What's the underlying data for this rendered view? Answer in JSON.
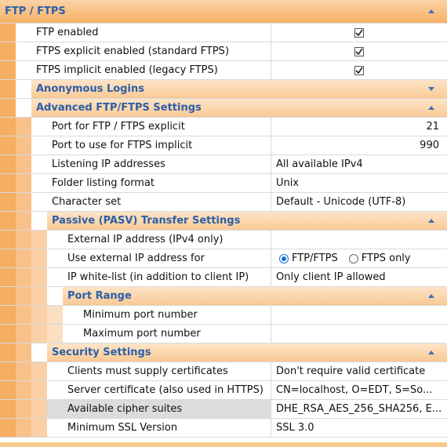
{
  "colors": {
    "section_text": "#2b5fa8",
    "rail_level1": "#f6ae63",
    "rail_level2": "#f8c18a",
    "rail_level3": "#f9d0a7",
    "rail_level4": "#fbdfc2",
    "selected_row": "#dcdcdc",
    "radio_accent": "#1f6fd1"
  },
  "ftp": {
    "title": "FTP / FTPS",
    "rows": [
      {
        "label": "FTP enabled",
        "checked": true
      },
      {
        "label": "FTPS explicit enabled (standard FTPS)",
        "checked": true
      },
      {
        "label": "FTPS implicit enabled (legacy FTPS)",
        "checked": true
      }
    ]
  },
  "anonymous": {
    "title": "Anonymous Logins",
    "expanded": false
  },
  "advanced": {
    "title": "Advanced FTP/FTPS Settings",
    "rows": [
      {
        "label": "Port for FTP / FTPS explicit",
        "value": "21"
      },
      {
        "label": "Port to use for FTPS implicit",
        "value": "990"
      },
      {
        "label": "Listening IP addresses",
        "value": "All available IPv4"
      },
      {
        "label": "Folder listing format",
        "value": "Unix"
      },
      {
        "label": "Character set",
        "value": "Default - Unicode (UTF-8)"
      }
    ]
  },
  "passive": {
    "title": "Passive (PASV) Transfer Settings",
    "external_ip_label": "External IP address (IPv4 only)",
    "external_ip_value": "",
    "use_external_label": "Use external IP address for",
    "use_external_options": [
      "FTP/FTPS",
      "FTPS only"
    ],
    "use_external_selected": "FTP/FTPS",
    "whitelist_label": "IP white-list (in addition to client IP)",
    "whitelist_value": "Only client IP allowed"
  },
  "port_range": {
    "title": "Port Range",
    "rows": [
      {
        "label": "Minimum port number",
        "value": ""
      },
      {
        "label": "Maximum port number",
        "value": ""
      }
    ]
  },
  "security": {
    "title": "Security Settings",
    "rows": [
      {
        "label": "Clients must supply certificates",
        "value": "Don't require valid certificate"
      },
      {
        "label": "Server certificate (also used in HTTPS)",
        "value": "CN=localhost, O=EDT, S=So..."
      },
      {
        "label": "Available cipher suites",
        "value": "DHE_RSA_AES_256_SHA256, E...",
        "selected": true
      },
      {
        "label": "Minimum SSL Version",
        "value": "SSL 3.0"
      }
    ]
  },
  "icons": {
    "collapse": "chevron-up-icon",
    "expand": "chevron-down-icon",
    "check": "check-icon"
  }
}
